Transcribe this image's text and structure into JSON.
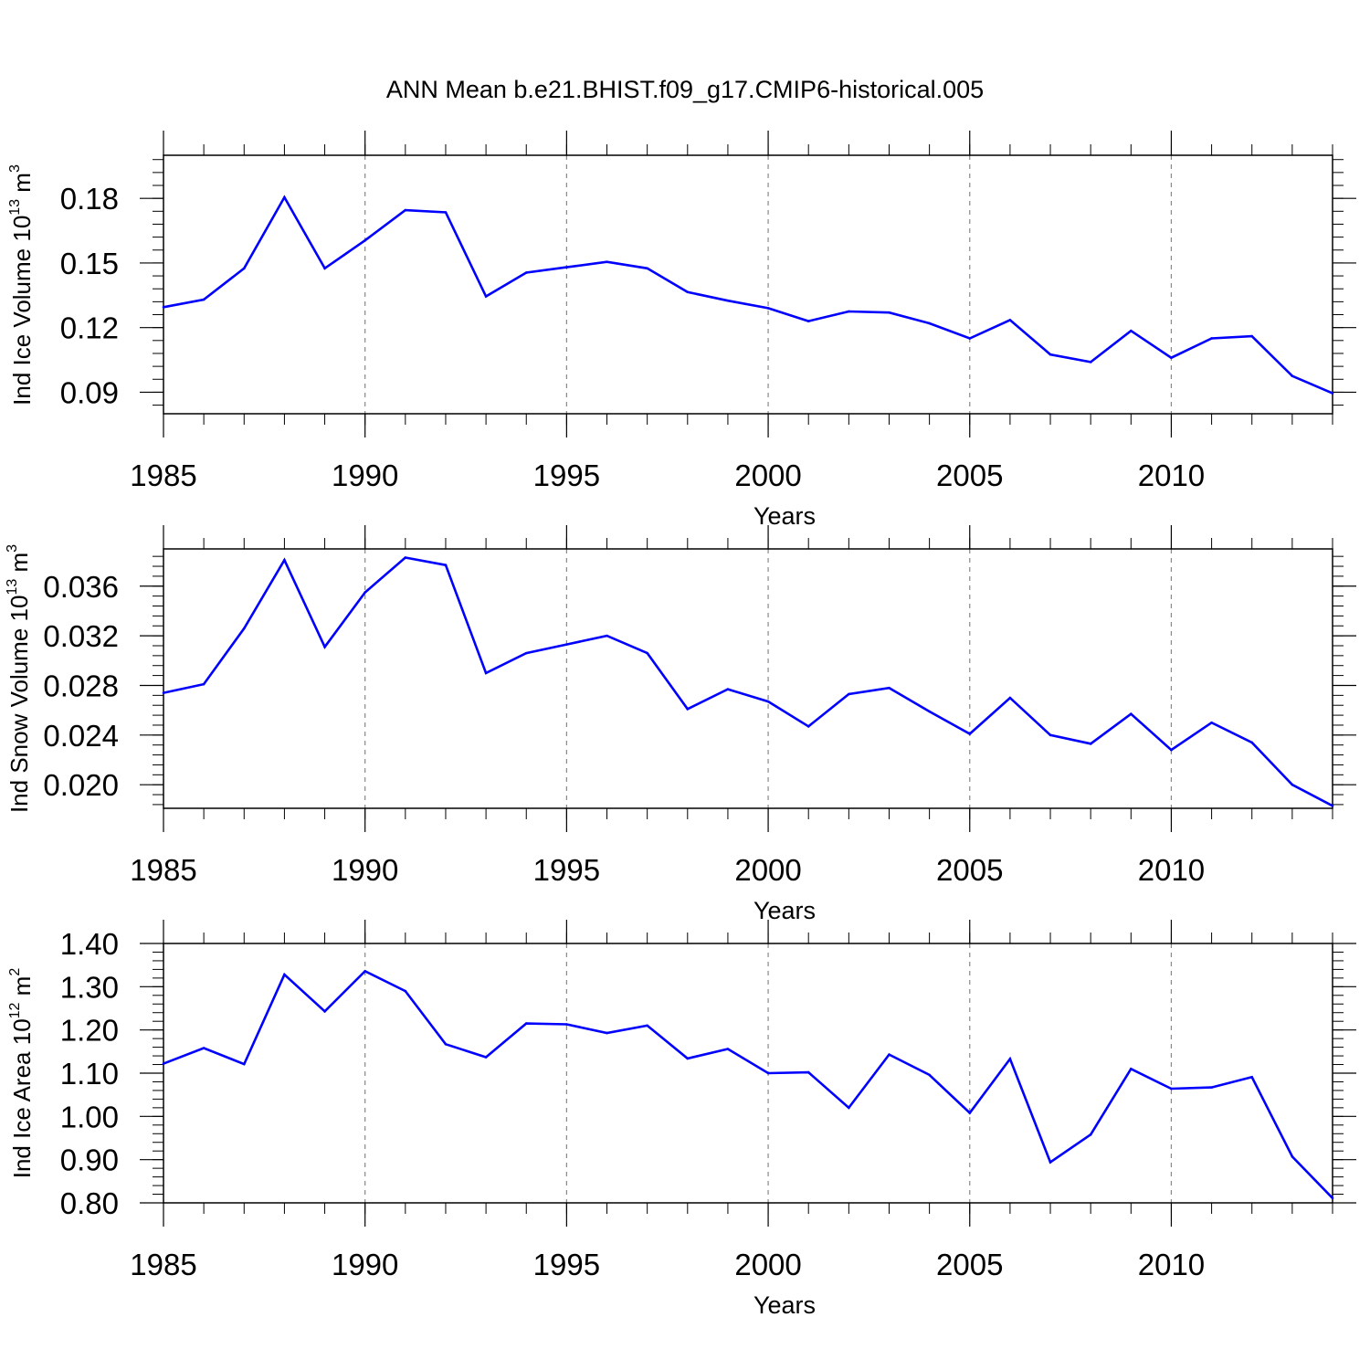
{
  "figure": {
    "title": "ANN Mean b.e21.BHIST.f09_g17.CMIP6-historical.005"
  },
  "chart_data": [
    {
      "type": "line",
      "title": "",
      "xlabel": "Years",
      "ylabel_main": "Ind Ice Volume 10",
      "ylabel_exp": "13",
      "ylabel_unit": " m",
      "ylabel_unit_exp": "3",
      "xlim": [
        1985,
        2014
      ],
      "ylim": [
        0.08,
        0.2
      ],
      "yticks": [
        0.09,
        0.12,
        0.15,
        0.18
      ],
      "ytick_labels": [
        "0.09",
        "0.12",
        "0.15",
        "0.18"
      ],
      "xticks": [
        1985,
        1990,
        1995,
        2000,
        2005,
        2010
      ],
      "xtick_labels": [
        "1985",
        "1990",
        "1995",
        "2000",
        "2005",
        "2010"
      ],
      "grid_x": [
        1990,
        1995,
        2000,
        2005,
        2010
      ],
      "line_color": "#0000ff",
      "series": [
        {
          "name": "Ind Ice Volume",
          "x": [
            1985,
            1986,
            1987,
            1988,
            1989,
            1990,
            1991,
            1992,
            1993,
            1994,
            1995,
            1996,
            1997,
            1998,
            1999,
            2000,
            2001,
            2002,
            2003,
            2004,
            2005,
            2006,
            2007,
            2008,
            2009,
            2010,
            2011,
            2012,
            2013,
            2014
          ],
          "y": [
            0.1295,
            0.133,
            0.1475,
            0.1805,
            0.1475,
            0.1605,
            0.1745,
            0.1735,
            0.1345,
            0.1455,
            0.148,
            0.1505,
            0.1475,
            0.1365,
            0.1325,
            0.129,
            0.123,
            0.1275,
            0.127,
            0.122,
            0.115,
            0.1235,
            0.1075,
            0.104,
            0.1185,
            0.106,
            0.115,
            0.116,
            0.0975,
            0.0895
          ]
        }
      ]
    },
    {
      "type": "line",
      "title": "",
      "xlabel": "Years",
      "ylabel_main": "Ind Snow Volume 10",
      "ylabel_exp": "13",
      "ylabel_unit": " m",
      "ylabel_unit_exp": "3",
      "xlim": [
        1985,
        2014
      ],
      "ylim": [
        0.0181,
        0.039
      ],
      "yticks": [
        0.02,
        0.024,
        0.028,
        0.032,
        0.036
      ],
      "ytick_labels": [
        "0.020",
        "0.024",
        "0.028",
        "0.032",
        "0.036"
      ],
      "xticks": [
        1985,
        1990,
        1995,
        2000,
        2005,
        2010
      ],
      "xtick_labels": [
        "1985",
        "1990",
        "1995",
        "2000",
        "2005",
        "2010"
      ],
      "grid_x": [
        1990,
        1995,
        2000,
        2005,
        2010
      ],
      "line_color": "#0000ff",
      "series": [
        {
          "name": "Ind Snow Volume",
          "x": [
            1985,
            1986,
            1987,
            1988,
            1989,
            1990,
            1991,
            1992,
            1993,
            1994,
            1995,
            1996,
            1997,
            1998,
            1999,
            2000,
            2001,
            2002,
            2003,
            2004,
            2005,
            2006,
            2007,
            2008,
            2009,
            2010,
            2011,
            2012,
            2013,
            2014
          ],
          "y": [
            0.0274,
            0.0281,
            0.0326,
            0.0381,
            0.0311,
            0.0355,
            0.0383,
            0.0377,
            0.029,
            0.0306,
            0.0313,
            0.032,
            0.0306,
            0.0261,
            0.0277,
            0.0267,
            0.0247,
            0.0273,
            0.0278,
            0.0259,
            0.0241,
            0.027,
            0.024,
            0.0233,
            0.0257,
            0.0228,
            0.025,
            0.0234,
            0.02,
            0.0183
          ]
        }
      ]
    },
    {
      "type": "line",
      "title": "",
      "xlabel": "Years",
      "ylabel_main": "Ind Ice Area 10",
      "ylabel_exp": "12",
      "ylabel_unit": " m",
      "ylabel_unit_exp": "2",
      "xlim": [
        1985,
        2014
      ],
      "ylim": [
        0.8,
        1.4
      ],
      "yticks": [
        0.8,
        0.9,
        1.0,
        1.1,
        1.2,
        1.3,
        1.4
      ],
      "ytick_labels": [
        "0.80",
        "0.90",
        "1.00",
        "1.10",
        "1.20",
        "1.30",
        "1.40"
      ],
      "xticks": [
        1985,
        1990,
        1995,
        2000,
        2005,
        2010
      ],
      "xtick_labels": [
        "1985",
        "1990",
        "1995",
        "2000",
        "2005",
        "2010"
      ],
      "grid_x": [
        1990,
        1995,
        2000,
        2005,
        2010
      ],
      "line_color": "#0000ff",
      "series": [
        {
          "name": "Ind Ice Area",
          "x": [
            1985,
            1986,
            1987,
            1988,
            1989,
            1990,
            1991,
            1992,
            1993,
            1994,
            1995,
            1996,
            1997,
            1998,
            1999,
            2000,
            2001,
            2002,
            2003,
            2004,
            2005,
            2006,
            2007,
            2008,
            2009,
            2010,
            2011,
            2012,
            2013,
            2014
          ],
          "y": [
            1.122,
            1.158,
            1.121,
            1.328,
            1.243,
            1.336,
            1.29,
            1.167,
            1.137,
            1.215,
            1.213,
            1.193,
            1.21,
            1.134,
            1.156,
            1.1,
            1.102,
            1.02,
            1.143,
            1.096,
            1.008,
            1.133,
            0.894,
            0.958,
            1.11,
            1.064,
            1.067,
            1.091,
            0.907,
            0.811
          ]
        }
      ]
    }
  ]
}
